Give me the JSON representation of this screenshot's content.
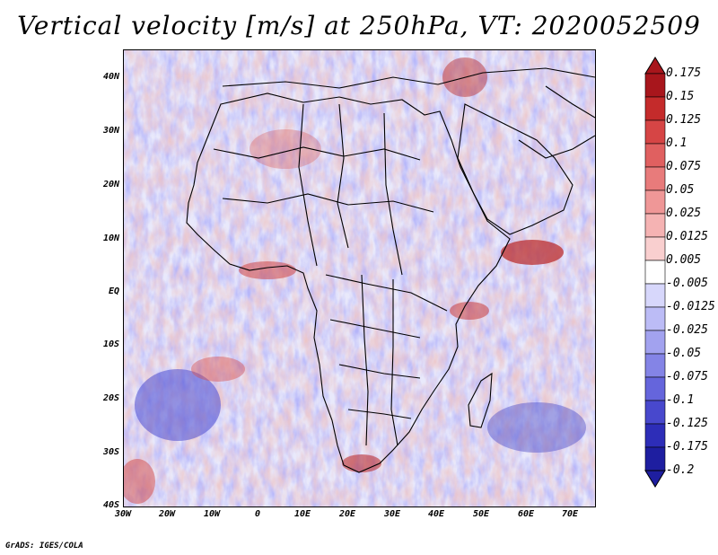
{
  "title": "Vertical velocity [m/s] at 250hPa, VT: 2020052509",
  "footer": "GrADS: IGES/COLA",
  "map": {
    "region": "Africa",
    "field": "vertical-velocity",
    "lat_labels": [
      "40N",
      "30N",
      "20N",
      "10N",
      "EQ",
      "10S",
      "20S",
      "30S",
      "40S"
    ],
    "lon_labels": [
      "30W",
      "20W",
      "10W",
      "0",
      "10E",
      "20E",
      "30E",
      "40E",
      "50E",
      "60E",
      "70E"
    ]
  },
  "colorbar": {
    "levels": [
      "0.175",
      "0.15",
      "0.125",
      "0.1",
      "0.075",
      "0.05",
      "0.025",
      "0.0125",
      "0.005",
      "-0.005",
      "-0.0125",
      "-0.025",
      "-0.05",
      "-0.075",
      "-0.1",
      "-0.125",
      "-0.175",
      "-0.2"
    ],
    "colors": [
      "#a8161c",
      "#c42b2b",
      "#d64545",
      "#e06060",
      "#e87b7b",
      "#ef9797",
      "#f5b3b3",
      "#f9cfcf",
      "#ffffff",
      "#ffffff",
      "#d7d7fb",
      "#bcbcf6",
      "#a2a2ef",
      "#8484e6",
      "#6565dc",
      "#4848cd",
      "#2d2db8",
      "#1e1ea0"
    ]
  }
}
